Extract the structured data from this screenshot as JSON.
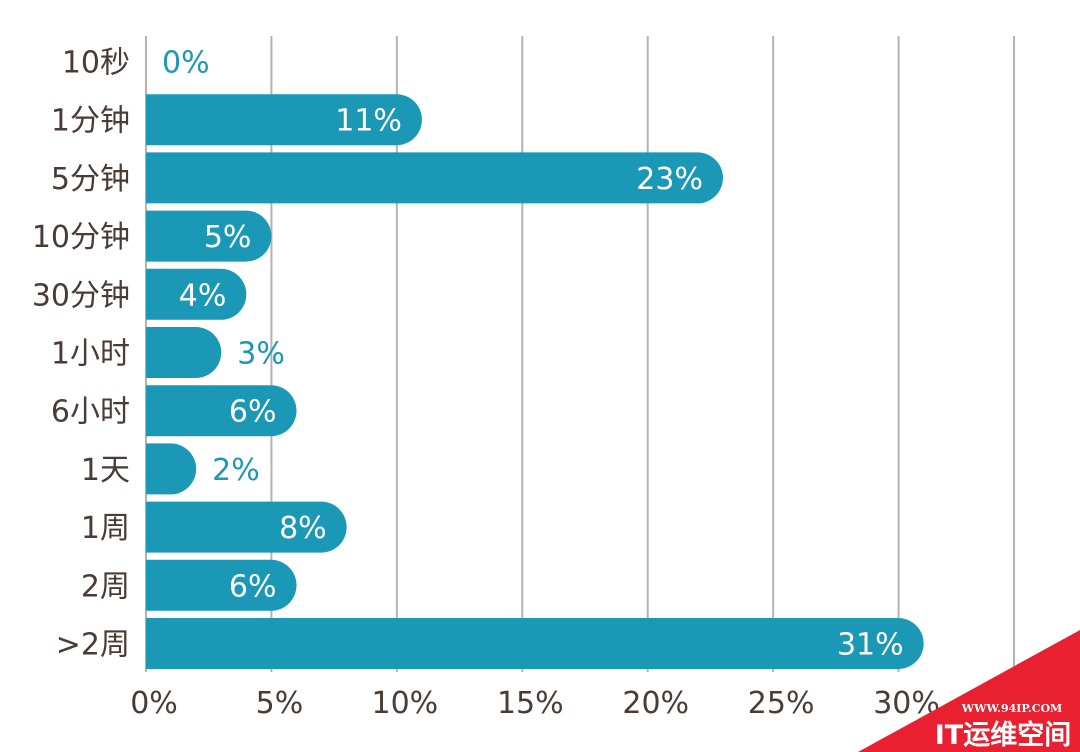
{
  "chart_data": {
    "type": "bar",
    "orientation": "horizontal",
    "categories": [
      "10秒",
      "1分钟",
      "5分钟",
      "10分钟",
      "30分钟",
      "1小时",
      "6小时",
      "1天",
      "1周",
      "2周",
      ">2周"
    ],
    "values": [
      0,
      11,
      23,
      5,
      4,
      3,
      6,
      2,
      8,
      6,
      31
    ],
    "value_labels": [
      "0%",
      "11%",
      "23%",
      "5%",
      "4%",
      "3%",
      "6%",
      "2%",
      "8%",
      "6%",
      "31%"
    ],
    "xlim": [
      0,
      35
    ],
    "x_ticks": [
      0,
      5,
      10,
      15,
      20,
      25,
      30
    ],
    "x_tick_labels": [
      "0%",
      "5%",
      "10%",
      "15%",
      "20%",
      "25%",
      "30%"
    ],
    "grid": "vertical",
    "bar_color": "#1b98b5",
    "label_color_inside": "#ffffff",
    "label_color_outside": "#1b98b5",
    "title": "",
    "xlabel": "",
    "ylabel": ""
  },
  "watermark": {
    "url": "WWW.94IP.COM",
    "text": "IT运维空间",
    "color": "#e8202f"
  }
}
